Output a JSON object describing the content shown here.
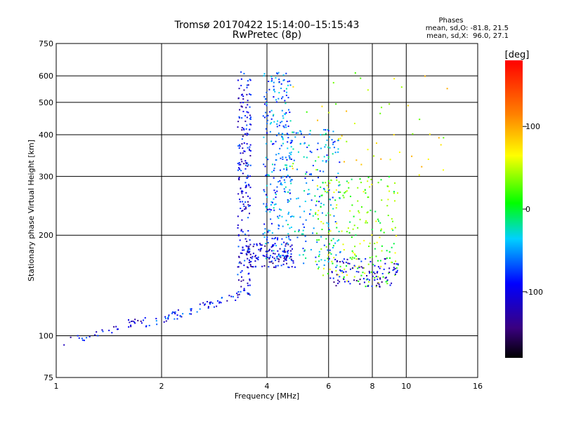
{
  "chart_data": {
    "type": "scatter",
    "title": "Tromsø 20170422 15:14:00–15:15:43",
    "subtitle": "RwPretec (8p)",
    "xlabel": "Frequency [MHz]",
    "ylabel": "Stationary phase Virtual Height [km]",
    "x_scale": "log",
    "y_scale": "log",
    "xlim": [
      1,
      16
    ],
    "ylim": [
      75,
      750
    ],
    "x_ticks": [
      "1",
      "2",
      "4",
      "6",
      "8",
      "10",
      "16"
    ],
    "x_tick_values": [
      1,
      2,
      4,
      6,
      8,
      10,
      16
    ],
    "y_ticks": [
      "75",
      "100",
      "200",
      "300",
      "400",
      "500",
      "600",
      "750"
    ],
    "y_tick_values": [
      75,
      100,
      200,
      300,
      400,
      500,
      600,
      750
    ],
    "grid": true,
    "stats": {
      "title": "Phases",
      "o_line": "mean, sd,O: -81.8, 21.5",
      "x_line": "mean, sd,X:  96.0, 27.1"
    },
    "colorbar": {
      "label": "[deg]",
      "range": [
        -180,
        180
      ],
      "tick_labels": [
        "100",
        "0",
        "-100"
      ],
      "tick_values": [
        100,
        0,
        -100
      ],
      "position": "right"
    },
    "point_clusters": [
      {
        "x": [
          1.05,
          1.8
        ],
        "y": [
          95,
          112
        ],
        "phase": -100,
        "count": 35,
        "shape": "curve"
      },
      {
        "x": [
          1.8,
          3.3
        ],
        "y": [
          108,
          132
        ],
        "phase": -90,
        "count": 60,
        "shape": "curve"
      },
      {
        "x": [
          3.3,
          3.6
        ],
        "y": [
          130,
          620
        ],
        "phase": -100,
        "count": 220,
        "shape": "box"
      },
      {
        "x": [
          3.5,
          4.8
        ],
        "y": [
          160,
          190
        ],
        "phase": -110,
        "count": 120,
        "shape": "box"
      },
      {
        "x": [
          3.9,
          4.7
        ],
        "y": [
          170,
          620
        ],
        "phase": -60,
        "count": 260,
        "shape": "box"
      },
      {
        "x": [
          4.5,
          6.5
        ],
        "y": [
          160,
          420
        ],
        "phase": -50,
        "count": 200,
        "shape": "box"
      },
      {
        "x": [
          5.5,
          9.5
        ],
        "y": [
          140,
          300
        ],
        "phase": 30,
        "count": 220,
        "shape": "box"
      },
      {
        "x": [
          6.0,
          9.5
        ],
        "y": [
          140,
          170
        ],
        "phase": -110,
        "count": 100,
        "shape": "box"
      },
      {
        "x": [
          4.5,
          13.5
        ],
        "y": [
          300,
          620
        ],
        "phase": 60,
        "count": 50,
        "shape": "box"
      }
    ]
  }
}
